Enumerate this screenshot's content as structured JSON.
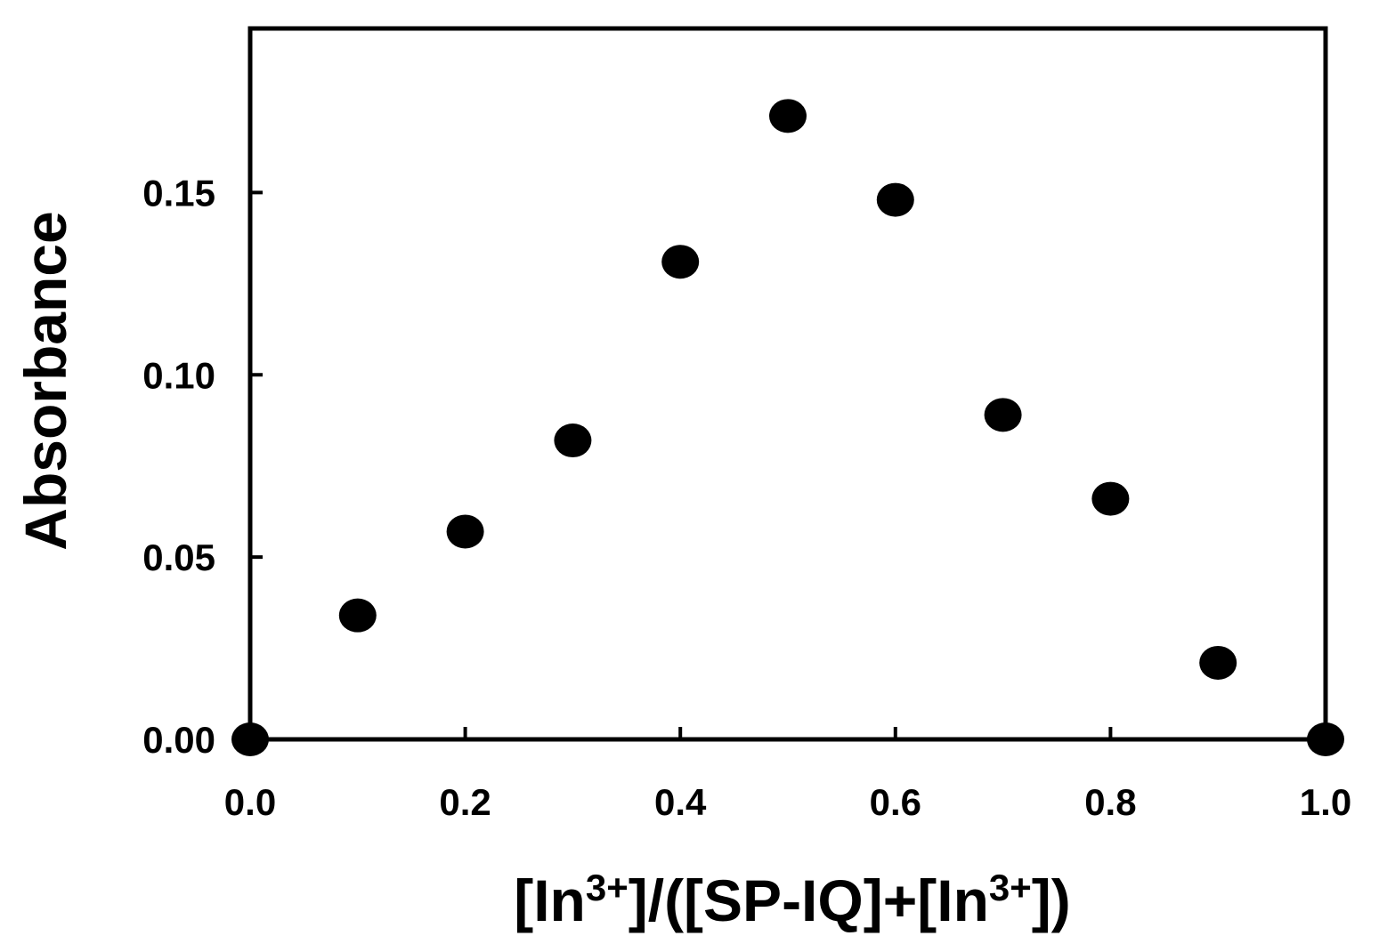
{
  "chart_data": {
    "type": "scatter",
    "title": "",
    "xlabel": {
      "parts": [
        {
          "text": "[In",
          "sup": false
        },
        {
          "text": "3+",
          "sup": true
        },
        {
          "text": "]/([SP-IQ]+[In",
          "sup": false
        },
        {
          "text": "3+",
          "sup": true
        },
        {
          "text": "])",
          "sup": false
        }
      ]
    },
    "ylabel": "Absorbance",
    "xlim": [
      0.0,
      1.0
    ],
    "ylim": [
      0.0,
      0.195
    ],
    "xticks": [
      0.0,
      0.2,
      0.4,
      0.6,
      0.8,
      1.0
    ],
    "xtick_labels": [
      "0.0",
      "0.2",
      "0.4",
      "0.6",
      "0.8",
      "1.0"
    ],
    "yticks": [
      0.0,
      0.05,
      0.1,
      0.15
    ],
    "ytick_labels": [
      "0.00",
      "0.05",
      "0.10",
      "0.15"
    ],
    "grid": false,
    "legend": "none",
    "marker_color": "#000000",
    "series": [
      {
        "x": [
          0.0,
          0.1,
          0.2,
          0.3,
          0.4,
          0.5,
          0.6,
          0.7,
          0.8,
          0.9,
          1.0
        ],
        "y": [
          0.0,
          0.034,
          0.057,
          0.082,
          0.131,
          0.171,
          0.148,
          0.089,
          0.066,
          0.021,
          0.0
        ]
      }
    ]
  }
}
